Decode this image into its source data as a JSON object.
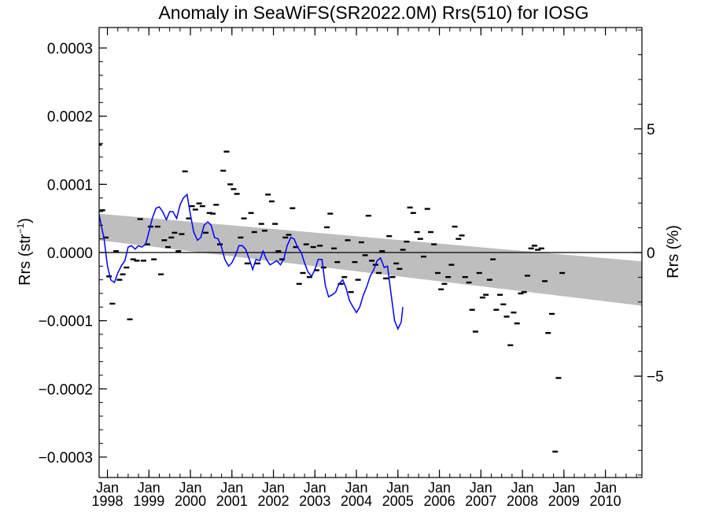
{
  "chart_data": {
    "type": "scatter",
    "title": "Anomaly in SeaWiFS(SR2022.0M) Rrs(510) for IOSG",
    "ylabel_main": "Rrs (str",
    "ylabel_sup": "−1",
    "ylabel_close": ")",
    "ylabel_right": "Rrs (%)",
    "xlim": [
      1997.8,
      2010.88
    ],
    "ylim": [
      -0.00033,
      0.00033
    ],
    "ylim_right": [
      -9.1,
      9.1
    ],
    "y_ticks": [
      {
        "value": 0.0003,
        "label": "0.0003"
      },
      {
        "value": 0.0002,
        "label": "0.0002"
      },
      {
        "value": 0.0001,
        "label": "0.0001"
      },
      {
        "value": 0.0,
        "label": "0.0000"
      },
      {
        "value": -0.0001,
        "label": "−0.0001"
      },
      {
        "value": -0.0002,
        "label": "−0.0002"
      },
      {
        "value": -0.0003,
        "label": "−0.0003"
      }
    ],
    "y_right_ticks": [
      {
        "value": 5,
        "label": "5"
      },
      {
        "value": 0,
        "label": "0"
      },
      {
        "value": -5,
        "label": "−5"
      }
    ],
    "x_ticks": [
      {
        "value": 1998.0,
        "month": "Jan",
        "year": "1998"
      },
      {
        "value": 1999.0,
        "month": "Jan",
        "year": "1999"
      },
      {
        "value": 2000.0,
        "month": "Jan",
        "year": "2000"
      },
      {
        "value": 2001.0,
        "month": "Jan",
        "year": "2001"
      },
      {
        "value": 2002.0,
        "month": "Jan",
        "year": "2002"
      },
      {
        "value": 2003.0,
        "month": "Jan",
        "year": "2003"
      },
      {
        "value": 2004.0,
        "month": "Jan",
        "year": "2004"
      },
      {
        "value": 2005.0,
        "month": "Jan",
        "year": "2005"
      },
      {
        "value": 2006.0,
        "month": "Jan",
        "year": "2006"
      },
      {
        "value": 2007.0,
        "month": "Jan",
        "year": "2007"
      },
      {
        "value": 2008.0,
        "month": "Jan",
        "year": "2008"
      },
      {
        "value": 2009.0,
        "month": "Jan",
        "year": "2009"
      },
      {
        "value": 2010.0,
        "month": "Jan",
        "year": "2010"
      }
    ],
    "trend_band": {
      "x": [
        1997.8,
        2010.88
      ],
      "upper": [
        5.7e-05,
        -1.3e-05
      ],
      "lower": [
        1.8e-05,
        -7.8e-05
      ]
    },
    "colors": {
      "points": "#000000",
      "smooth_line": "#0000ff",
      "band": "#bebebe",
      "zero_line": "#000000"
    },
    "points": [
      [
        1997.8,
        0.000158
      ],
      [
        1997.88,
        6.2e-05
      ],
      [
        1997.96,
        2.2e-05
      ],
      [
        1998.04,
        -3.5e-05
      ],
      [
        1998.12,
        -7.5e-05
      ],
      [
        1998.21,
        2e-06
      ],
      [
        1998.29,
        -4e-05
      ],
      [
        1998.37,
        -3.2e-05
      ],
      [
        1998.46,
        -2.2e-05
      ],
      [
        1998.54,
        -9.8e-05
      ],
      [
        1998.62,
        -1e-05
      ],
      [
        1998.71,
        -1.2e-05
      ],
      [
        1998.79,
        4.9e-05
      ],
      [
        1998.87,
        -1.2e-05
      ],
      [
        1998.96,
        1.2e-05
      ],
      [
        1999.04,
        3.8e-05
      ],
      [
        1999.12,
        -1e-05
      ],
      [
        1999.21,
        3.8e-05
      ],
      [
        1999.29,
        -3.2e-05
      ],
      [
        1999.37,
        1.8e-05
      ],
      [
        1999.46,
        8e-06
      ],
      [
        1999.54,
        2.2e-05
      ],
      [
        1999.62,
        2.9e-05
      ],
      [
        1999.71,
        2e-06
      ],
      [
        1999.79,
        2.7e-05
      ],
      [
        1999.87,
        0.000119
      ],
      [
        1999.96,
        5e-05
      ],
      [
        2000.04,
        6.8e-05
      ],
      [
        2000.12,
        6.3e-05
      ],
      [
        2000.21,
        7.2e-05
      ],
      [
        2000.29,
        6.8e-05
      ],
      [
        2000.37,
        2.9e-05
      ],
      [
        2000.46,
        5.8e-05
      ],
      [
        2000.54,
        5.7e-05
      ],
      [
        2000.62,
        7e-05
      ],
      [
        2000.71,
        1.2e-05
      ],
      [
        2000.79,
        0.00012
      ],
      [
        2000.87,
        0.000148
      ],
      [
        2000.96,
        0.0001
      ],
      [
        2001.04,
        9.3e-05
      ],
      [
        2001.12,
        8.6e-05
      ],
      [
        2001.21,
        2.2e-05
      ],
      [
        2001.29,
        5e-05
      ],
      [
        2001.37,
        -1.6e-05
      ],
      [
        2001.46,
        5.8e-05
      ],
      [
        2001.54,
        3e-05
      ],
      [
        2001.62,
        -1.6e-05
      ],
      [
        2001.71,
        4.2e-05
      ],
      [
        2001.79,
        3.2e-05
      ],
      [
        2001.87,
        8.5e-05
      ],
      [
        2001.96,
        7.5e-05
      ],
      [
        2002.04,
        4.2e-05
      ],
      [
        2002.12,
        2e-06
      ],
      [
        2002.21,
        -1e-05
      ],
      [
        2002.29,
        2.2e-05
      ],
      [
        2002.37,
        2.6e-05
      ],
      [
        2002.46,
        6.5e-05
      ],
      [
        2002.54,
        8e-06
      ],
      [
        2002.62,
        -4.6e-05
      ],
      [
        2002.71,
        -3e-05
      ],
      [
        2002.79,
        1.2e-05
      ],
      [
        2002.87,
        -3.6e-05
      ],
      [
        2002.96,
        8e-06
      ],
      [
        2003.04,
        -2.6e-05
      ],
      [
        2003.12,
        1e-05
      ],
      [
        2003.21,
        -2.2e-05
      ],
      [
        2003.29,
        3.7e-05
      ],
      [
        2003.37,
        5.7e-05
      ],
      [
        2003.46,
        6e-06
      ],
      [
        2003.54,
        -1.4e-05
      ],
      [
        2003.62,
        -4.6e-05
      ],
      [
        2003.71,
        -3.6e-05
      ],
      [
        2003.79,
        1.8e-05
      ],
      [
        2003.87,
        -5.8e-05
      ],
      [
        2003.96,
        -1.4e-05
      ],
      [
        2004.04,
        -4e-05
      ],
      [
        2004.12,
        1.5e-05
      ],
      [
        2004.21,
        -4e-06
      ],
      [
        2004.29,
        5.4e-05
      ],
      [
        2004.37,
        -1.2e-05
      ],
      [
        2004.46,
        -1.8e-05
      ],
      [
        2004.54,
        -3e-05
      ],
      [
        2004.62,
        2e-06
      ],
      [
        2004.71,
        -3.8e-05
      ],
      [
        2004.79,
        2.4e-05
      ],
      [
        2004.87,
        -3.6e-05
      ],
      [
        2004.96,
        -1.6e-05
      ],
      [
        2005.04,
        -2.4e-05
      ],
      [
        2005.12,
        4e-06
      ],
      [
        2005.21,
        1.6e-05
      ],
      [
        2005.29,
        6.6e-05
      ],
      [
        2005.37,
        5.8e-05
      ],
      [
        2005.46,
        3e-05
      ],
      [
        2005.54,
        2e-05
      ],
      [
        2005.62,
        -6e-06
      ],
      [
        2005.71,
        6.4e-05
      ],
      [
        2005.79,
        3e-05
      ],
      [
        2005.87,
        1.2e-05
      ],
      [
        2005.96,
        -3e-05
      ],
      [
        2006.04,
        -5.4e-05
      ],
      [
        2006.12,
        -4.6e-05
      ],
      [
        2006.21,
        -3.6e-05
      ],
      [
        2006.29,
        -1.8e-05
      ],
      [
        2006.37,
        3.8e-05
      ],
      [
        2006.46,
        2e-05
      ],
      [
        2006.54,
        2.5e-05
      ],
      [
        2006.62,
        -3.6e-05
      ],
      [
        2006.71,
        -4.4e-05
      ],
      [
        2006.79,
        -8.4e-05
      ],
      [
        2006.87,
        -0.000116
      ],
      [
        2006.96,
        -3e-05
      ],
      [
        2007.04,
        -6.6e-05
      ],
      [
        2007.12,
        -6.2e-05
      ],
      [
        2007.21,
        -4e-05
      ],
      [
        2007.29,
        -1e-05
      ],
      [
        2007.37,
        -8.4e-05
      ],
      [
        2007.46,
        -6.2e-05
      ],
      [
        2007.54,
        -7.6e-05
      ],
      [
        2007.62,
        -9.4e-05
      ],
      [
        2007.71,
        -0.000136
      ],
      [
        2007.79,
        -8.8e-05
      ],
      [
        2007.87,
        -0.000104
      ],
      [
        2007.96,
        -6e-05
      ],
      [
        2008.04,
        -5.8e-05
      ],
      [
        2008.12,
        -3.4e-05
      ],
      [
        2008.21,
        6e-06
      ],
      [
        2008.29,
        1e-05
      ],
      [
        2008.37,
        4e-06
      ],
      [
        2008.46,
        6e-06
      ],
      [
        2008.54,
        -4.2e-05
      ],
      [
        2008.62,
        -0.000118
      ],
      [
        2008.71,
        -9e-05
      ],
      [
        2008.79,
        -0.000292
      ],
      [
        2008.87,
        -0.000184
      ],
      [
        2008.96,
        -3e-05
      ]
    ],
    "smooth": [
      [
        1997.8,
        5.5e-05
      ],
      [
        1997.92,
        2e-05
      ],
      [
        1998.0,
        -2e-05
      ],
      [
        1998.08,
        -4e-05
      ],
      [
        1998.17,
        -4.4e-05
      ],
      [
        1998.25,
        -3e-05
      ],
      [
        1998.33,
        -2e-05
      ],
      [
        1998.42,
        -1.2e-05
      ],
      [
        1998.5,
        8e-06
      ],
      [
        1998.58,
        1e-05
      ],
      [
        1998.67,
        5e-06
      ],
      [
        1998.75,
        1e-05
      ],
      [
        1998.83,
        8e-06
      ],
      [
        1998.92,
        1.2e-05
      ],
      [
        1999.0,
        3e-05
      ],
      [
        1999.08,
        5e-05
      ],
      [
        1999.17,
        6.5e-05
      ],
      [
        1999.25,
        6.7e-05
      ],
      [
        1999.33,
        6e-05
      ],
      [
        1999.42,
        4.8e-05
      ],
      [
        1999.5,
        6e-05
      ],
      [
        1999.58,
        6e-05
      ],
      [
        1999.67,
        5e-05
      ],
      [
        1999.75,
        7e-05
      ],
      [
        1999.83,
        8e-05
      ],
      [
        1999.92,
        8.5e-05
      ],
      [
        2000.0,
        5.5e-05
      ],
      [
        2000.08,
        3e-05
      ],
      [
        2000.17,
        1.8e-05
      ],
      [
        2000.25,
        2.2e-05
      ],
      [
        2000.33,
        4e-05
      ],
      [
        2000.42,
        4.5e-05
      ],
      [
        2000.5,
        4e-05
      ],
      [
        2000.58,
        2.2e-05
      ],
      [
        2000.67,
        2e-05
      ],
      [
        2000.75,
        8e-06
      ],
      [
        2000.83,
        -1e-05
      ],
      [
        2000.92,
        -2e-05
      ],
      [
        2001.0,
        -1.5e-05
      ],
      [
        2001.08,
        -5e-06
      ],
      [
        2001.17,
        1e-05
      ],
      [
        2001.25,
        1e-05
      ],
      [
        2001.33,
        5e-06
      ],
      [
        2001.42,
        -1e-05
      ],
      [
        2001.5,
        -2.5e-05
      ],
      [
        2001.58,
        -1e-05
      ],
      [
        2001.67,
        -1.2e-05
      ],
      [
        2001.75,
        2e-06
      ],
      [
        2001.83,
        -1e-05
      ],
      [
        2001.92,
        -1.8e-05
      ],
      [
        2002.0,
        -1.5e-05
      ],
      [
        2002.08,
        -1.2e-05
      ],
      [
        2002.17,
        -1.8e-05
      ],
      [
        2002.25,
        -1e-05
      ],
      [
        2002.33,
        1e-05
      ],
      [
        2002.42,
        2.2e-05
      ],
      [
        2002.5,
        2e-05
      ],
      [
        2002.58,
        8e-06
      ],
      [
        2002.67,
        0.0
      ],
      [
        2002.75,
        -1.5e-05
      ],
      [
        2002.83,
        -2.8e-05
      ],
      [
        2002.92,
        -3.5e-05
      ],
      [
        2003.0,
        -2.5e-05
      ],
      [
        2003.08,
        -1e-05
      ],
      [
        2003.17,
        -1e-05
      ],
      [
        2003.25,
        -4.8e-05
      ],
      [
        2003.33,
        -6.5e-05
      ],
      [
        2003.42,
        -6.2e-05
      ],
      [
        2003.5,
        -5.8e-05
      ],
      [
        2003.58,
        -4.6e-05
      ],
      [
        2003.67,
        -4e-05
      ],
      [
        2003.75,
        -5.2e-05
      ],
      [
        2003.83,
        -7e-05
      ],
      [
        2003.92,
        -8e-05
      ],
      [
        2004.0,
        -8.8e-05
      ],
      [
        2004.08,
        -8e-05
      ],
      [
        2004.17,
        -6.2e-05
      ],
      [
        2004.25,
        -5e-05
      ],
      [
        2004.33,
        -3.5e-05
      ],
      [
        2004.42,
        -2.5e-05
      ],
      [
        2004.5,
        -1.2e-05
      ],
      [
        2004.58,
        -8e-06
      ],
      [
        2004.67,
        -2.2e-05
      ],
      [
        2004.75,
        -2e-05
      ],
      [
        2004.83,
        -5.8e-05
      ],
      [
        2004.92,
        -0.0001
      ],
      [
        2005.0,
        -0.000112
      ],
      [
        2005.08,
        -0.000102
      ],
      [
        2005.12,
        -8e-05
      ]
    ]
  }
}
